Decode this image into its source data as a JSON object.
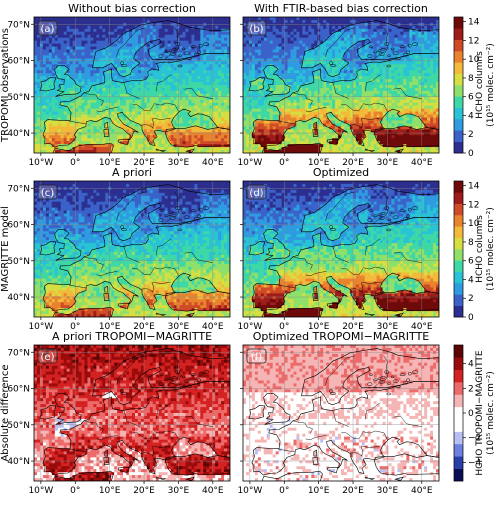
{
  "rows": [
    {
      "row_label": "TROPOMI observations",
      "panels": [
        {
          "letter": "(a)",
          "title": "Without bias correction",
          "mode": "field",
          "bias": false
        },
        {
          "letter": "(b)",
          "title": "With FTIR-based bias correction",
          "mode": "field",
          "bias": true
        }
      ],
      "colorbar": {
        "kind": "seq",
        "ticks": [
          "0",
          "2",
          "4",
          "6",
          "8",
          "10",
          "12",
          "14"
        ],
        "label_line1": "HCHO columns",
        "label_line2": "(10¹⁵ molec. cm⁻²)"
      }
    },
    {
      "row_label": "MAGRITTE model",
      "panels": [
        {
          "letter": "(c)",
          "title": "A priori",
          "mode": "field",
          "bias": false
        },
        {
          "letter": "(d)",
          "title": "Optimized",
          "mode": "field",
          "bias": true
        }
      ],
      "colorbar": {
        "kind": "seq",
        "ticks": [
          "0",
          "2",
          "4",
          "6",
          "8",
          "10",
          "12",
          "14"
        ],
        "label_line1": "HCHO columns",
        "label_line2": "(10¹⁵ molec. cm⁻²)"
      }
    },
    {
      "row_label": "Absolute difference",
      "panels": [
        {
          "letter": "(e)",
          "title": "A priori TROPOMI−MAGRITTE",
          "mode": "diff",
          "bias": false
        },
        {
          "letter": "(f)",
          "title": "Optimized TROPOMI−MAGRITTE",
          "mode": "diff",
          "bias": true
        }
      ],
      "colorbar": {
        "kind": "div",
        "ticks": [
          "−4",
          "−2",
          "0",
          "2",
          "4"
        ],
        "label_line1": "HCHO TROPOMI−MAGRITTE",
        "label_line2": "(10¹⁵ molec. cm⁻²)"
      }
    }
  ],
  "x_ticks": [
    "10°W",
    "0°",
    "10°E",
    "20°E",
    "30°E",
    "40°E"
  ],
  "y_ticks": [
    "70°N",
    "60°N",
    "50°N",
    "40°N"
  ],
  "colormaps": {
    "seq": [
      "#2c2f8f",
      "#3a62c8",
      "#2f9be0",
      "#29c3d6",
      "#3ed8a6",
      "#8fe06a",
      "#d6de42",
      "#f2b93a",
      "#e9832e",
      "#cf4a26",
      "#9e1d1a",
      "#6e0a0a"
    ],
    "div": [
      "#0a0f55",
      "#2a3fa8",
      "#6f7fe0",
      "#b8bff2",
      "#ffffff",
      "#ffffff",
      "#f6b5b5",
      "#ec6a6a",
      "#d42222",
      "#9a0c0c",
      "#5c0505"
    ]
  }
}
